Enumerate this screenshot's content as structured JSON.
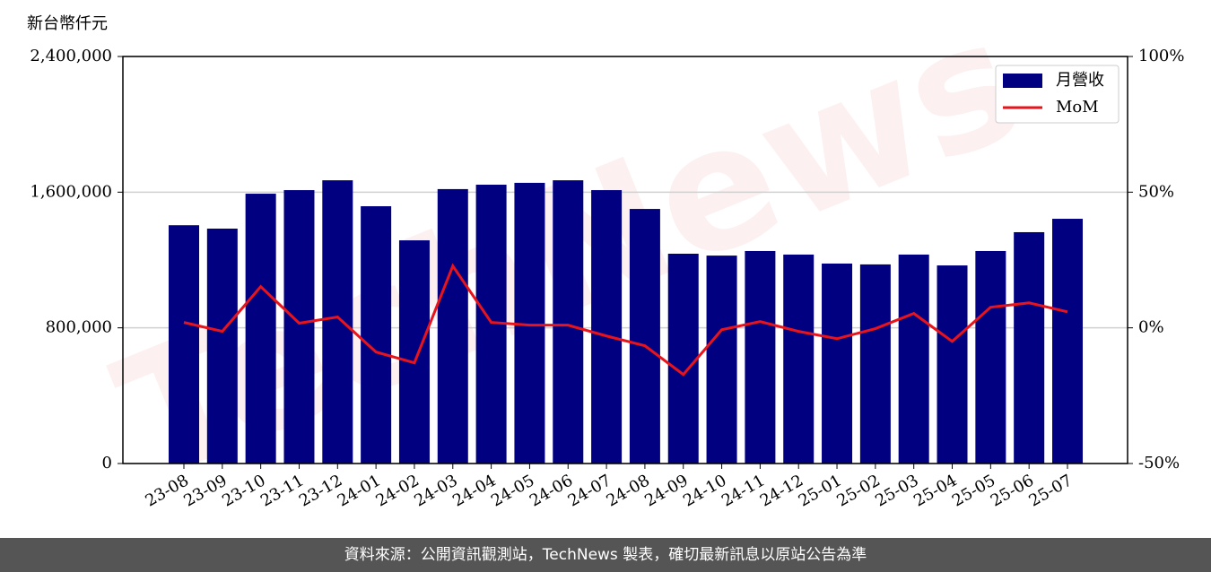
{
  "chart_data": {
    "type": "bar-line",
    "y_label": "新台幣仟元",
    "watermark": "TechNews",
    "categories": [
      "23-08",
      "23-09",
      "23-10",
      "23-11",
      "23-12",
      "24-01",
      "24-02",
      "24-03",
      "24-04",
      "24-05",
      "24-06",
      "24-07",
      "24-08",
      "24-09",
      "24-10",
      "24-11",
      "24-12",
      "25-01",
      "25-02",
      "25-03",
      "25-04",
      "25-05",
      "25-06",
      "25-07"
    ],
    "series": [
      {
        "name": "月營收",
        "type": "bar",
        "color": "#000080",
        "values": [
          1405000,
          1385000,
          1591000,
          1612000,
          1670000,
          1517000,
          1316000,
          1618000,
          1644000,
          1655000,
          1670000,
          1612000,
          1501000,
          1237000,
          1226000,
          1253000,
          1232000,
          1179000,
          1174000,
          1232000,
          1168000,
          1253000,
          1364000,
          1443000
        ]
      },
      {
        "name": "MoM",
        "type": "line",
        "axis": "y2",
        "color": "#e8131b",
        "values": [
          2.0,
          -1.3,
          15.2,
          1.7,
          4.0,
          -8.9,
          -12.9,
          22.8,
          2.0,
          1.0,
          1.0,
          -3.0,
          -6.6,
          -17.2,
          -0.7,
          2.3,
          -1.3,
          -4.0,
          -0.3,
          5.3,
          -5.0,
          7.6,
          9.2,
          5.9
        ]
      }
    ],
    "ylim": [
      0,
      2400000
    ],
    "yticks": [
      {
        "value": 0,
        "label": "0"
      },
      {
        "value": 800000,
        "label": "800,000"
      },
      {
        "value": 1600000,
        "label": "1,600,000"
      },
      {
        "value": 2400000,
        "label": "2,400,000"
      }
    ],
    "y2lim": [
      -50,
      100
    ],
    "y2ticks": [
      {
        "value": -50,
        "label": "-50%"
      },
      {
        "value": 0,
        "label": "0%"
      },
      {
        "value": 50,
        "label": "50%"
      },
      {
        "value": 100,
        "label": "100%"
      }
    ],
    "grid": true,
    "legend": "upper right"
  },
  "footer": "資料來源：公開資訊觀測站，TechNews 製表，確切最新訊息以原站公告為準"
}
